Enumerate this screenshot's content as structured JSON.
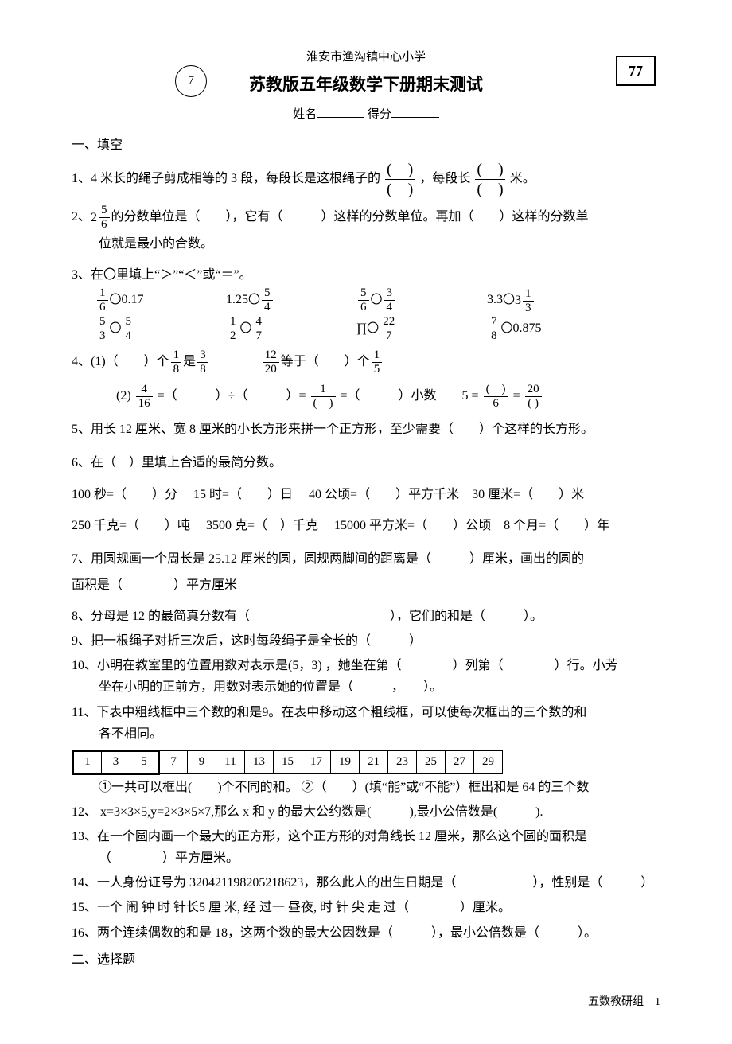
{
  "header": {
    "school": "淮安市渔沟镇中心小学",
    "title": "苏教版五年级数学下册期末测试",
    "circle_num": "7",
    "box_num": "77",
    "name_label": "姓名",
    "score_label": "得分"
  },
  "section1_title": "一、填空",
  "q1": {
    "prefix": "1、4 米长的绳子剪成相等的 3 段，每段长是这根绳子的",
    "mid": "，每段长",
    "suffix": "米。"
  },
  "q2": {
    "line_a_prefix": "2、",
    "whole": "2",
    "num": "5",
    "den": "6",
    "a": "的分数单位是（　　），它有（　　　）这样的分数单位。再加（　　）这样的分数单",
    "b": "位就是最小的合数。"
  },
  "q3": {
    "title": "3、在〇里填上“＞”“＜”或“＝”。",
    "r1": {
      "c1": {
        "num": "1",
        "den": "6",
        "op": "〇",
        "rhs": "0.17"
      },
      "c2": {
        "lhs": "1.25",
        "op": "〇",
        "num": "5",
        "den": "4"
      },
      "c3": {
        "anum": "5",
        "aden": "6",
        "op": "〇",
        "bnum": "3",
        "bden": "4"
      },
      "c4": {
        "lhs": "3.3",
        "op": "〇",
        "whole": "3",
        "num": "1",
        "den": "3"
      }
    },
    "r2": {
      "c1": {
        "anum": "5",
        "aden": "3",
        "op": "〇",
        "bnum": "5",
        "bden": "4"
      },
      "c2": {
        "anum": "1",
        "aden": "2",
        "op": "〇",
        "bnum": "4",
        "bden": "7"
      },
      "c3": {
        "lhs": "∏",
        "op": "〇",
        "num": "22",
        "den": "7"
      },
      "c4": {
        "num": "7",
        "den": "8",
        "op": "〇",
        "rhs": "0.875"
      }
    }
  },
  "q4": {
    "p1_a": "4、(1)（　　）个",
    "f1": {
      "num": "1",
      "den": "8"
    },
    "p1_b": "是",
    "f2": {
      "num": "3",
      "den": "8"
    },
    "gap": "　　　　",
    "f3": {
      "num": "12",
      "den": "20"
    },
    "p1_c": "等于（　　）个",
    "f4": {
      "num": "1",
      "den": "5"
    },
    "p2_a": "(2) ",
    "f5": {
      "num": "4",
      "den": "16"
    },
    "p2_b": " =（　　　）÷（　　　）= ",
    "f6": {
      "num": "1",
      "den": "(　)"
    },
    "p2_c": " =（　　　）小数　　5 = ",
    "f7": {
      "num": "(　)",
      "den": "6"
    },
    "p2_d": " = ",
    "f8": {
      "num": "20",
      "den": "( )"
    }
  },
  "q5": "5、用长 12 厘米、宽 8 厘米的小长方形来拼一个正方形，至少需要（　　）个这样的长方形。",
  "q6": {
    "title": "6、在（　）里填上合适的最简分数。",
    "r1": " 100 秒=（　　）分　 15 时=（　　）日　 40 公顷=（　　）平方千米　30 厘米=（　　）米",
    "r2": "250 千克=（　　）吨　 3500 克=（　）千克　 15000 平方米=（　　）公顷　8 个月=（　　）年"
  },
  "q7": {
    "a": "7、用圆规画一个周长是 25.12 厘米的圆，圆规两脚间的距离是（　　　）厘米，画出的圆的",
    "b": "面积是（　　　　）平方厘米"
  },
  "q8": "8、分母是 12 的最简真分数有（　　　　　　　　　　　），它们的和是（　　　）。",
  "q9": "9、把一根绳子对折三次后，这时每段绳子是全长的（　　　）",
  "q10": {
    "a": "10、小明在教室里的位置用数对表示是(5，3) ，她坐在第（　　　　）列第（　　　　）行。小芳",
    "b": "坐在小明的正前方，用数对表示她的位置是（　　　，　　）。"
  },
  "q11": {
    "a": "11、下表中粗线框中三个数的和是9。在表中移动这个粗线框，可以使每次框出的三个数的和",
    "b": "各不相同。",
    "cells": [
      "1",
      "3",
      "5",
      "7",
      "9",
      "11",
      "13",
      "15",
      "17",
      "19",
      "21",
      "23",
      "25",
      "27",
      "29"
    ],
    "c": "①一共可以框出(　　)个不同的和。 ②（　　）(填“能”或“不能”）框出和是 64 的三个数"
  },
  "q12": "12、 x=3×3×5,y=2×3×5×7,那么 x 和 y 的最大公约数是(　　　),最小公倍数是(　　　).",
  "q13": {
    "a": "13、在一个圆内画一个最大的正方形，这个正方形的对角线长 12 厘米，那么这个圆的面积是",
    "b": "（　　　　）平方厘米。"
  },
  "q14": "14、一人身份证号为 320421198205218623，那么此人的出生日期是（　　　　　　），性别是（　　　）",
  "q15": "15、一个 闹 钟 时 针长5 厘 米, 经 过一 昼夜, 时 针 尖 走 过（　　　　）厘米。",
  "q16": "16、两个连续偶数的和是 18，这两个数的最大公因数是（　　　），最小公倍数是（　　　）。",
  "section2_title": "二、选择题",
  "footer": "五数教研组　1"
}
